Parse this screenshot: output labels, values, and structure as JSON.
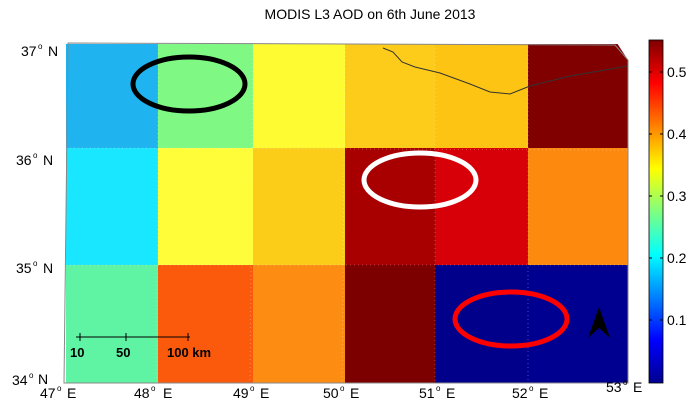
{
  "title": "MODIS L3 AOD on 6th June 2013",
  "map": {
    "lat_labels": [
      "37",
      "36",
      "35",
      "34"
    ],
    "lat_hemisphere": "N",
    "lon_labels": [
      "47",
      "48",
      "49",
      "50",
      "51",
      "52",
      "53"
    ],
    "lon_hemisphere": "E",
    "grid_colors": [
      [
        "#1fb3f0",
        "#7ff983",
        "#fefb33",
        "#fdcc1a",
        "#fdc413",
        "#800000"
      ],
      [
        "#19e6ff",
        "#fffc3a",
        "#fccd18",
        "#a80000",
        "#d80008",
        "#fd8a0e"
      ],
      [
        "#5ff4a4",
        "#fb5a0d",
        "#fd8d12",
        "#7c0000",
        "#00008a",
        "#000090"
      ]
    ],
    "color_scale_values": [
      [
        "#0000b0",
        "#1fb3f0",
        "#7ff983",
        "#fefb33",
        "#fdcc1a",
        "#fdc413",
        "#800000"
      ],
      [
        "#19e6ff",
        "#fffc3a",
        "#fccd18",
        "#a80000",
        "#d80008",
        "#fd8a0e"
      ]
    ],
    "scale_bar": {
      "labels": [
        "10",
        "50",
        "100 km"
      ]
    },
    "highlight_circles": [
      {
        "color": "#000000",
        "region": "northwest"
      },
      {
        "color": "#ffffff",
        "region": "central"
      },
      {
        "color": "#ff0000",
        "region": "southeast"
      }
    ],
    "north_arrow_color": "#000000"
  },
  "colorbar": {
    "ticks": [
      "0.5",
      "0.4",
      "0.3",
      "0.2",
      "0.1"
    ]
  }
}
